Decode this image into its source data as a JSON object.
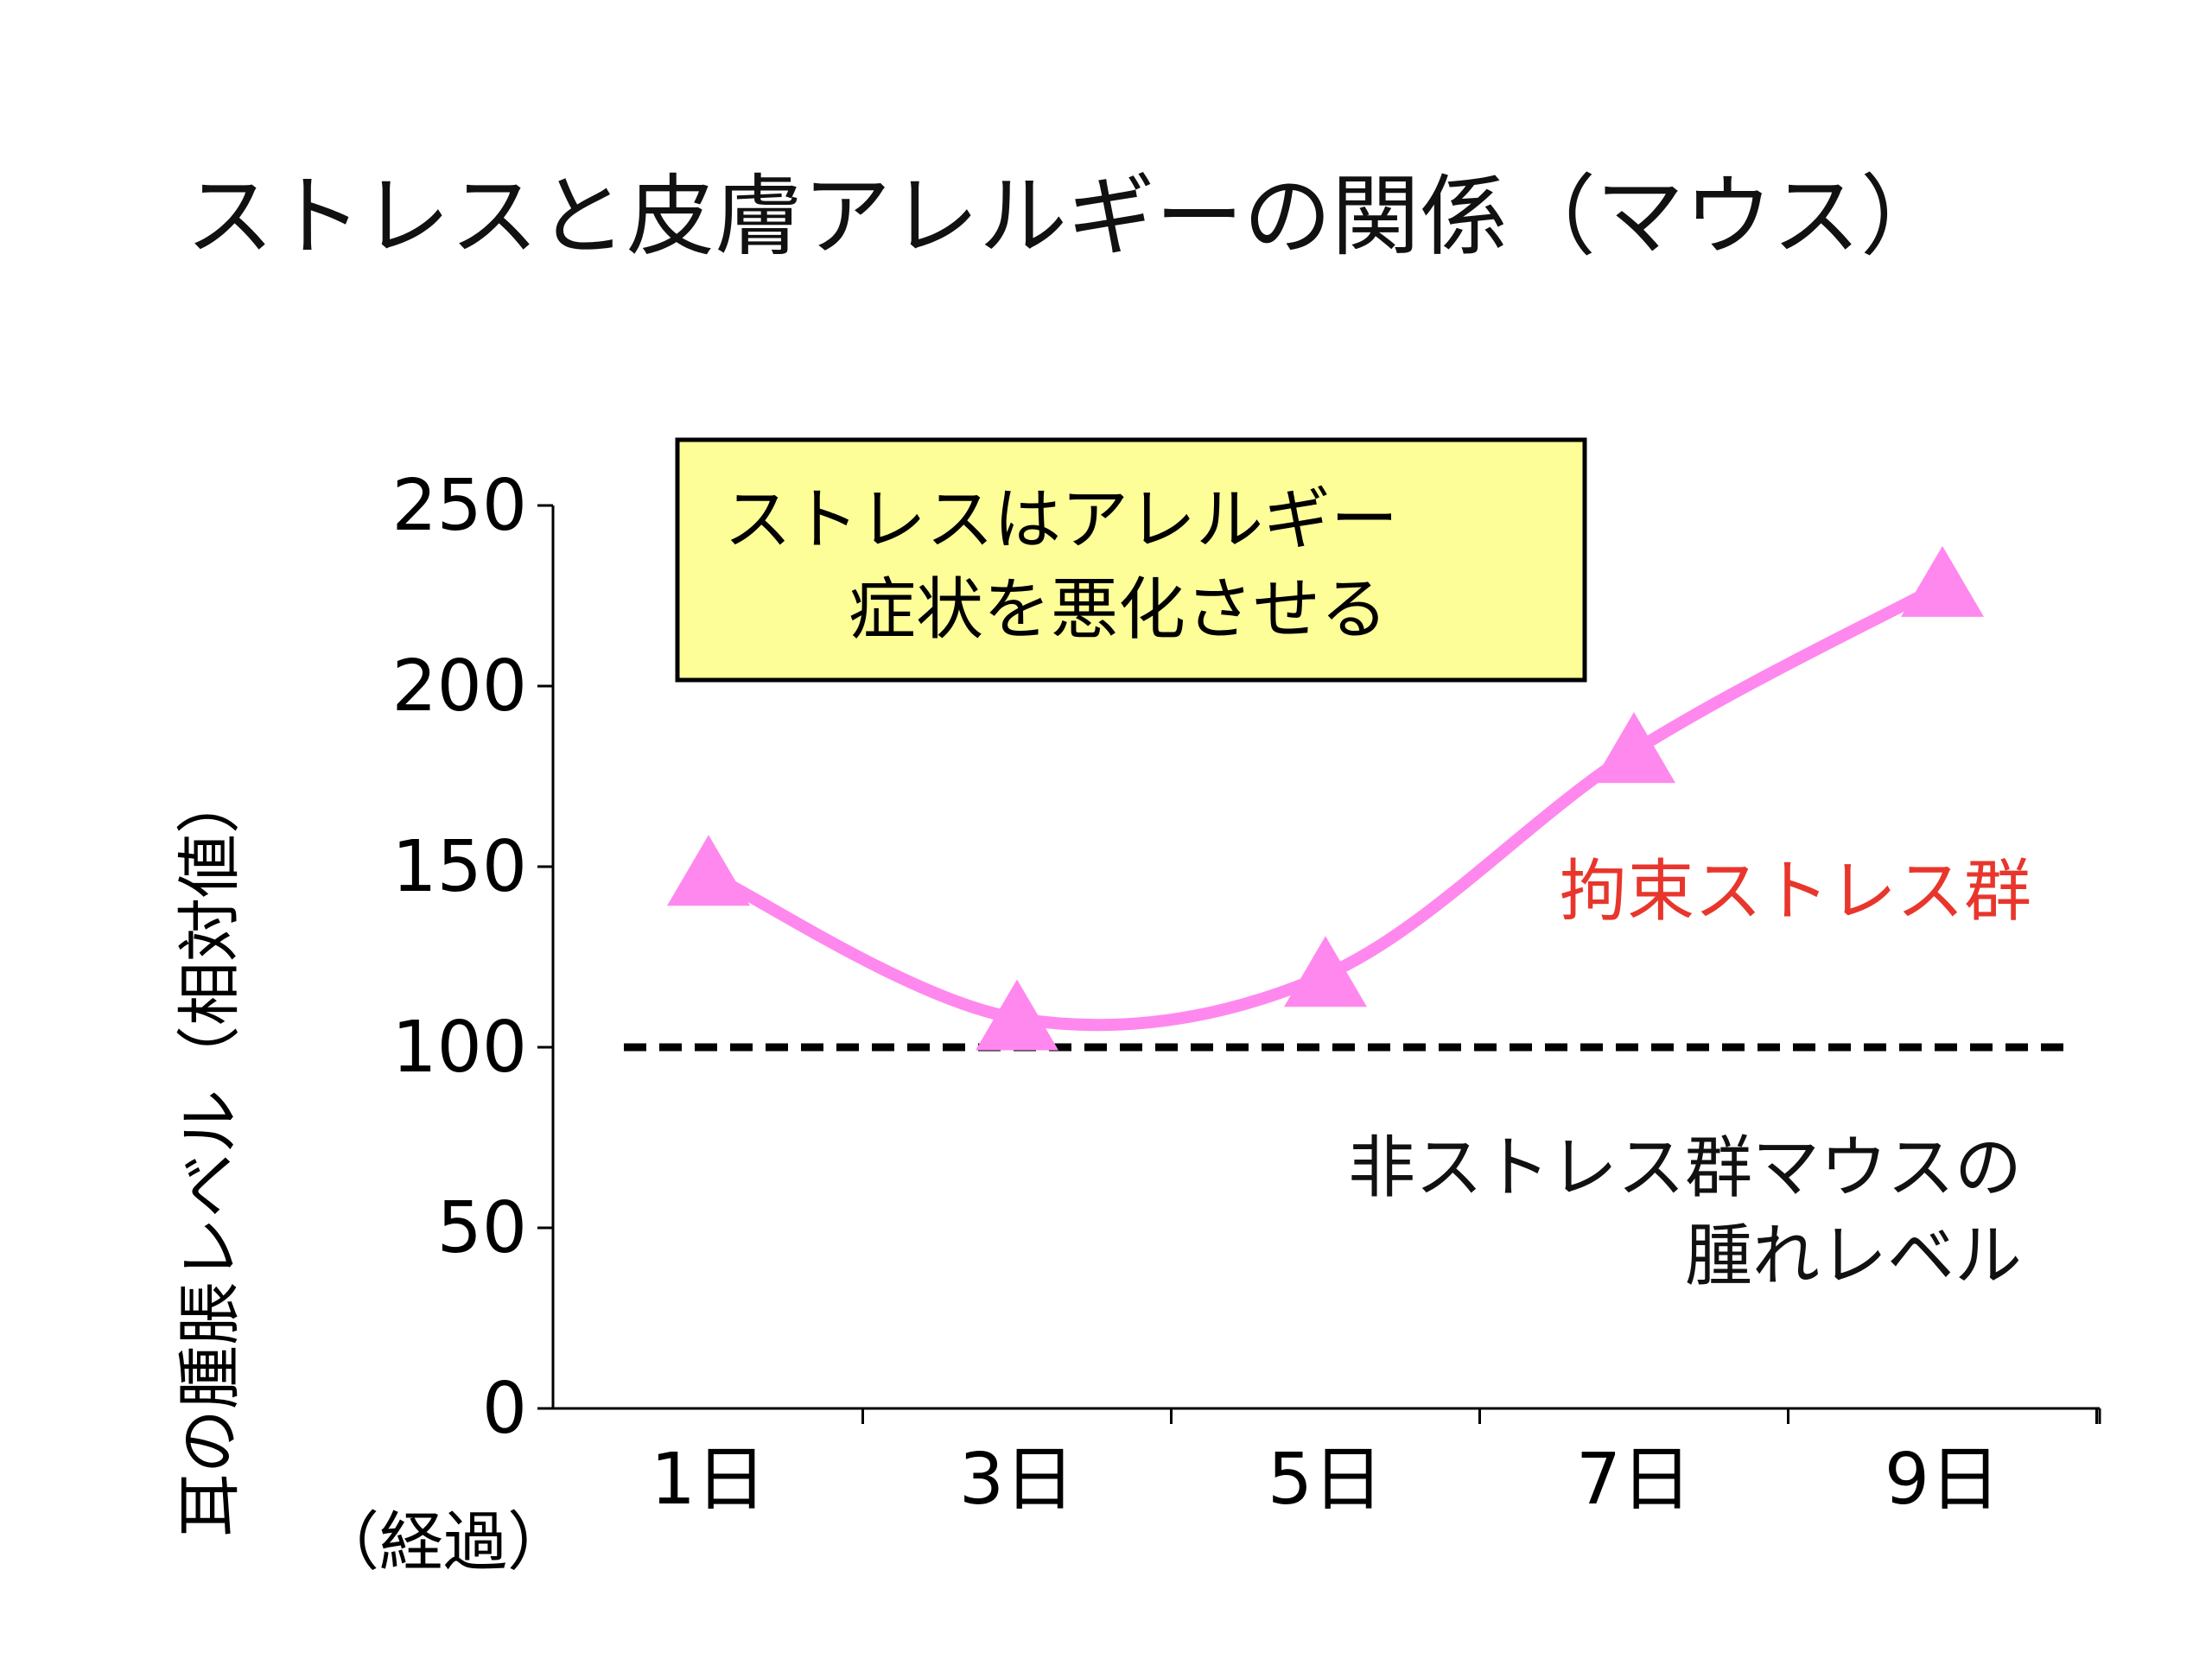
{
  "slide": {
    "title": "ストレスと皮膚アレルギーの関係（マウス）",
    "callout_line1": "ストレスはアレルギー",
    "callout_line2": "症状を悪化させる",
    "callout_bg": "#fefe99",
    "baseline_label_line1": "非ストレス群マウスの",
    "baseline_label_line2": "腫れレベル",
    "x_unit_label": "（経過）"
  },
  "chart_data": {
    "type": "line",
    "categories": [
      "1日",
      "3日",
      "5日",
      "7日",
      "9日"
    ],
    "series": [
      {
        "name": "拘束ストレス群",
        "values": [
          148,
          108,
          120,
          182,
          228
        ],
        "color": "#ff88ee",
        "label_color": "#e8362c",
        "marker": "triangle"
      }
    ],
    "reference_line": {
      "value": 100,
      "style": "dashed",
      "color": "#000000"
    },
    "ylabel": "耳の腫脹レベル（相対値）",
    "ylim": [
      0,
      250
    ],
    "yticks": [
      "0",
      "50",
      "100",
      "150",
      "200",
      "250"
    ],
    "grid": false
  }
}
